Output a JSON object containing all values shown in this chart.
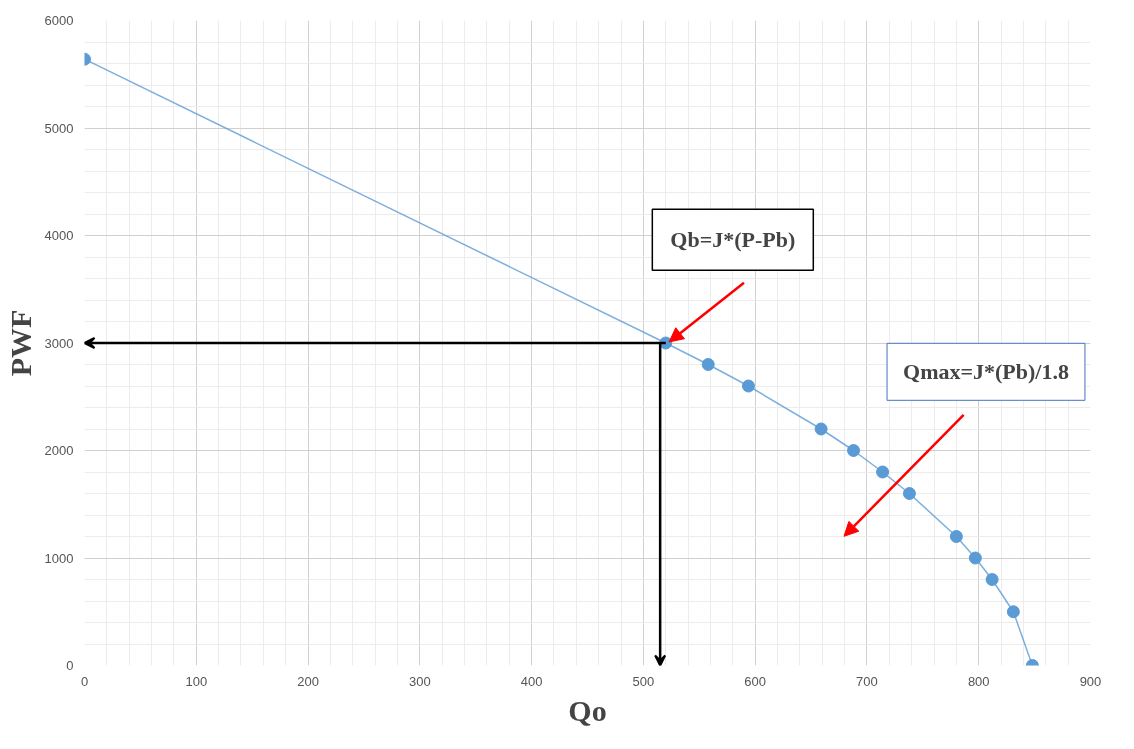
{
  "chart_data": {
    "type": "line",
    "xlabel": "Qo",
    "ylabel": "PWF",
    "x": [
      0,
      520,
      558,
      594,
      659,
      688,
      714,
      738,
      780,
      797,
      812,
      831,
      848
    ],
    "series": [
      {
        "color": "#5b9bd5",
        "values": [
          5640,
          3000,
          2800,
          2600,
          2200,
          2000,
          1800,
          1600,
          1200,
          1000,
          800,
          500,
          0
        ]
      }
    ],
    "marker": "circle",
    "grid": true,
    "xlim": [
      0,
      900
    ],
    "xticks": [
      0,
      100,
      200,
      300,
      400,
      500,
      600,
      700,
      800,
      900
    ],
    "ylim": [
      0,
      6000
    ],
    "yticks": [
      0,
      1000,
      2000,
      3000,
      4000,
      5000,
      6000
    ],
    "annotations": [
      "Qb=J*(P-Pb)",
      "Qmax=J*(Pb)/1.8"
    ]
  }
}
